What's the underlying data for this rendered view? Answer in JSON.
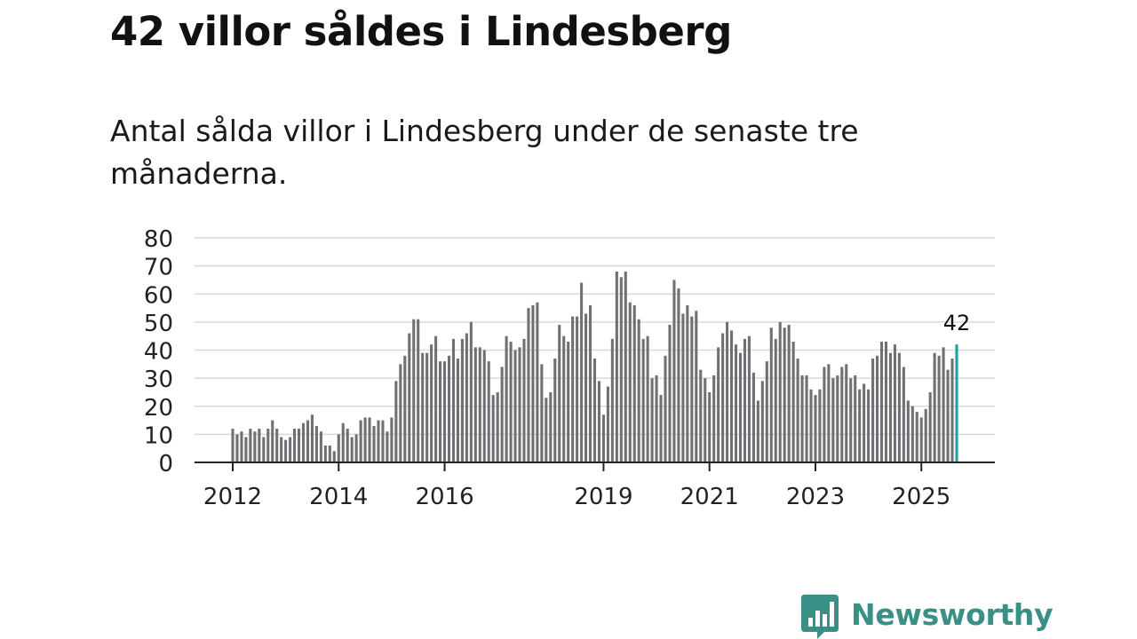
{
  "header": {
    "title": "42 villor såldes i Lindesberg",
    "subtitle": "Antal sålda villor i Lindesberg under de senaste tre månaderna."
  },
  "brand": {
    "name": "Newsworthy",
    "logo_icon": "bar-chart-speech-bubble-icon",
    "color": "#3a8f86"
  },
  "colors": {
    "bar": "#707074",
    "highlight": "#1aa39a",
    "grid": "#d9d9d9",
    "axis": "#222222",
    "text": "#222222"
  },
  "chart_data": {
    "type": "bar",
    "title": "42 villor såldes i Lindesberg",
    "subtitle": "Antal sålda villor i Lindesberg under de senaste tre månaderna.",
    "xlabel": "",
    "ylabel": "",
    "ylim": [
      0,
      80
    ],
    "yticks": [
      0,
      10,
      20,
      30,
      40,
      50,
      60,
      70,
      80
    ],
    "grid": true,
    "start_year": 2012,
    "start_month": 1,
    "xtick_labels": [
      {
        "label": "2012",
        "index": 0
      },
      {
        "label": "2014",
        "index": 24
      },
      {
        "label": "2016",
        "index": 48
      },
      {
        "label": "2019",
        "index": 84
      },
      {
        "label": "2021",
        "index": 108
      },
      {
        "label": "2023",
        "index": 132
      },
      {
        "label": "2025",
        "index": 156
      }
    ],
    "highlight_label": "42",
    "values": [
      12,
      10,
      11,
      9,
      12,
      11,
      12,
      9,
      12,
      15,
      12,
      9,
      8,
      9,
      12,
      12,
      14,
      15,
      17,
      13,
      11,
      6,
      6,
      4,
      10,
      14,
      12,
      9,
      10,
      15,
      16,
      16,
      13,
      15,
      15,
      11,
      16,
      29,
      35,
      38,
      46,
      51,
      51,
      39,
      39,
      42,
      45,
      36,
      36,
      38,
      44,
      37,
      44,
      46,
      50,
      41,
      41,
      40,
      36,
      24,
      25,
      34,
      45,
      43,
      40,
      41,
      44,
      55,
      56,
      57,
      35,
      23,
      25,
      37,
      49,
      45,
      43,
      52,
      52,
      64,
      53,
      56,
      37,
      29,
      17,
      27,
      44,
      68,
      66,
      68,
      57,
      56,
      51,
      44,
      45,
      30,
      31,
      24,
      38,
      49,
      65,
      62,
      53,
      56,
      52,
      54,
      33,
      30,
      25,
      31,
      41,
      46,
      50,
      47,
      42,
      39,
      44,
      45,
      32,
      22,
      29,
      36,
      48,
      44,
      50,
      48,
      49,
      43,
      37,
      31,
      31,
      26,
      24,
      26,
      34,
      35,
      30,
      31,
      34,
      35,
      30,
      31,
      26,
      28,
      26,
      37,
      38,
      43,
      43,
      39,
      42,
      39,
      34,
      22,
      20,
      18,
      16,
      19,
      25,
      39,
      38,
      41,
      33,
      37,
      42
    ]
  }
}
